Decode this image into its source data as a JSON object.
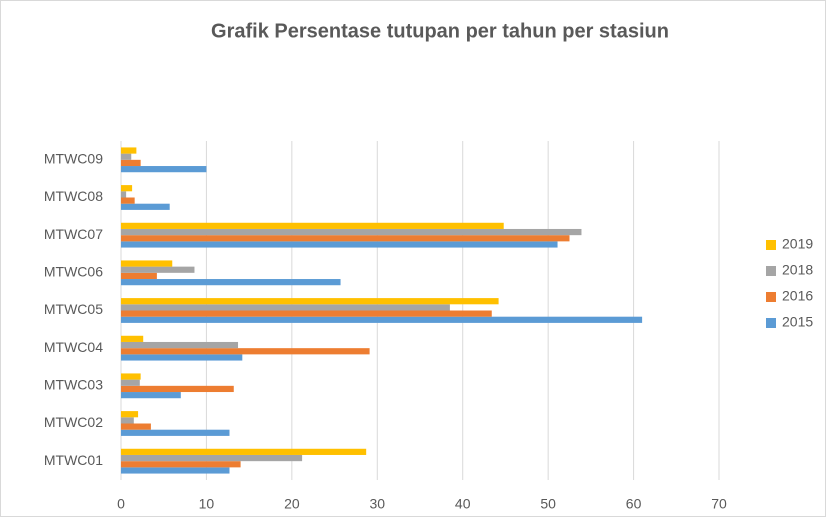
{
  "chart_data": {
    "type": "hbar",
    "title": "Grafik Persentase tutupan per tahun per stasiun",
    "categories": [
      "MTWC01",
      "MTWC02",
      "MTWC03",
      "MTWC04",
      "MTWC05",
      "MTWC06",
      "MTWC07",
      "MTWC08",
      "MTWC09"
    ],
    "series": [
      {
        "name": "2015",
        "color": "#5b9bd5",
        "values": [
          12.7,
          12.7,
          7.0,
          14.2,
          61.0,
          25.7,
          51.1,
          5.7,
          10.0
        ]
      },
      {
        "name": "2016",
        "color": "#ed7d31",
        "values": [
          14.0,
          3.5,
          13.2,
          29.1,
          43.4,
          4.2,
          52.5,
          1.6,
          2.3
        ]
      },
      {
        "name": "2018",
        "color": "#a5a5a5",
        "values": [
          21.2,
          1.5,
          2.2,
          13.7,
          38.5,
          8.6,
          53.9,
          0.6,
          1.2
        ]
      },
      {
        "name": "2019",
        "color": "#ffc000",
        "values": [
          28.7,
          2.0,
          2.3,
          2.6,
          44.2,
          6.0,
          44.8,
          1.3,
          1.8
        ]
      }
    ],
    "xlim": [
      0,
      70
    ],
    "xticks": [
      0,
      10,
      20,
      30,
      40,
      50,
      60,
      70
    ],
    "grid": true,
    "legend": "right"
  }
}
